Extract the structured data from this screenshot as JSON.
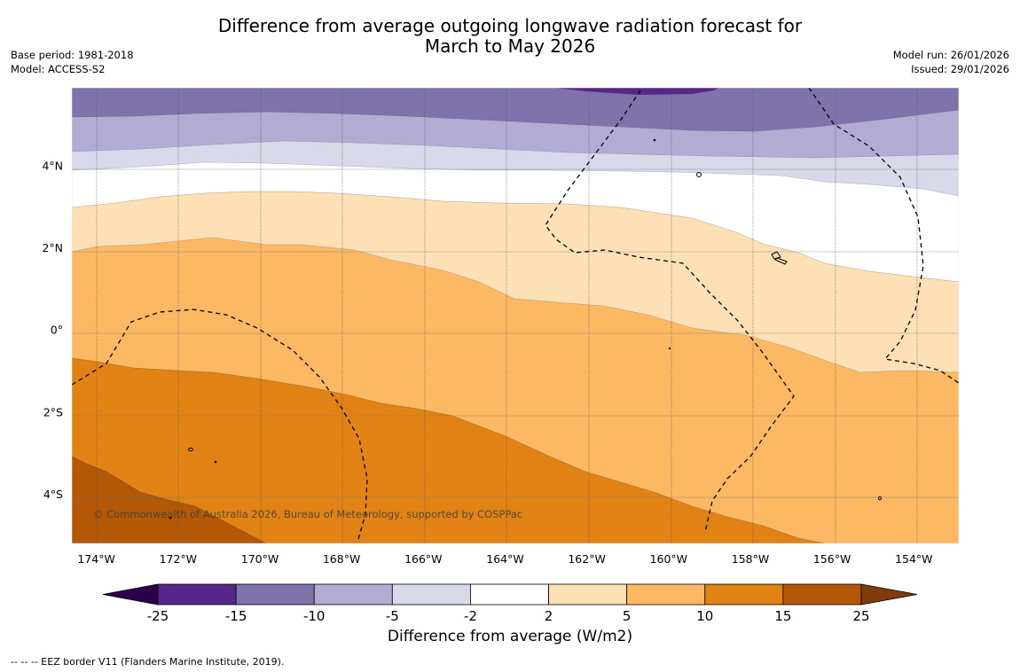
{
  "title_line1": "Difference from average outgoing longwave radiation forecast for",
  "title_line2": "March to May 2026",
  "base_period": "Base period: 1981-2018",
  "model": "Model: ACCESS-S2",
  "model_run": "Model run: 26/01/2026",
  "issued": "Issued: 29/01/2026",
  "copyright": "© Commonwealth of Australia 2026, Bureau of Meteorology, supported by COSPPac",
  "colorbar_title": "Difference from average (W/m2)",
  "footer_legend": "--  --  -- EEZ border V11 (Flanders Marine Institute, 2019).",
  "map": {
    "lon_range": [
      -174.6,
      -152.9
    ],
    "lat_range": [
      -5.2,
      5.9
    ],
    "lon_ticks": [
      {
        "value": -174,
        "label": "174°W"
      },
      {
        "value": -172,
        "label": "172°W"
      },
      {
        "value": -170,
        "label": "170°W"
      },
      {
        "value": -168,
        "label": "168°W"
      },
      {
        "value": -166,
        "label": "166°W"
      },
      {
        "value": -164,
        "label": "164°W"
      },
      {
        "value": -162,
        "label": "162°W"
      },
      {
        "value": -160,
        "label": "160°W"
      },
      {
        "value": -158,
        "label": "158°W"
      },
      {
        "value": -156,
        "label": "156°W"
      },
      {
        "value": -154,
        "label": "154°W"
      }
    ],
    "lat_ticks": [
      {
        "value": 4,
        "label": "4°N"
      },
      {
        "value": 2,
        "label": "2°N"
      },
      {
        "value": 0,
        "label": "0°"
      },
      {
        "value": -2,
        "label": "2°S"
      },
      {
        "value": -4,
        "label": "4°S"
      }
    ]
  },
  "colorbar": {
    "ticks": [
      "-25",
      "-15",
      "-10",
      "-5",
      "-2",
      "2",
      "5",
      "10",
      "15",
      "25"
    ],
    "colors": [
      "#542788",
      "#8073ac",
      "#b2abd2",
      "#d8daeb",
      "#ffffff",
      "#fee0b6",
      "#fdb863",
      "#e08214",
      "#b35806"
    ],
    "extend_low": "#2d004b",
    "extend_high": "#7f3b08"
  }
}
